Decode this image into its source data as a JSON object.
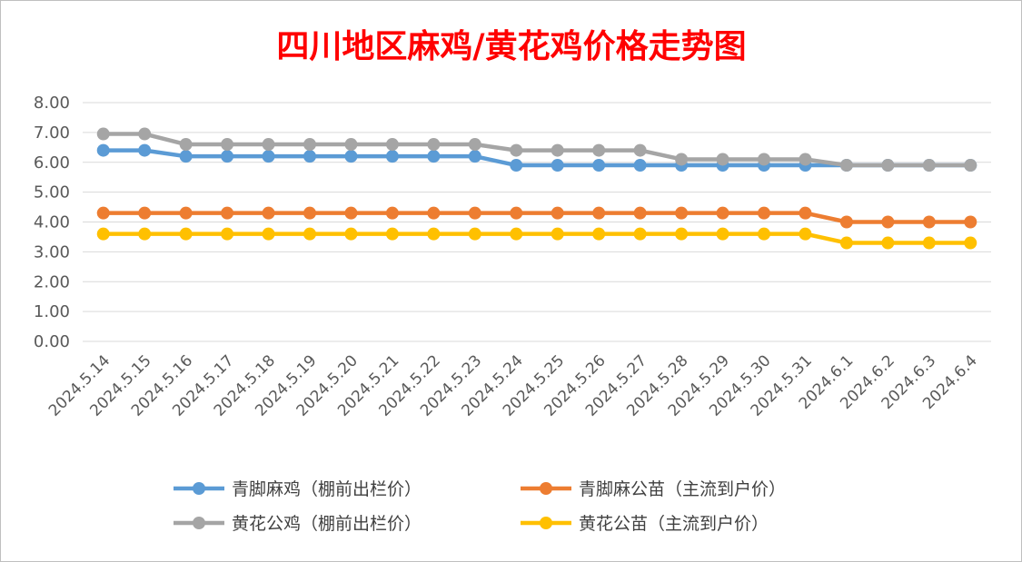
{
  "chart_data": {
    "type": "line",
    "title": "四川地区麻鸡/黄花鸡价格走势图",
    "xlabel": "",
    "ylabel": "",
    "ylim": [
      0,
      8
    ],
    "y_ticks": [
      "0.00",
      "1.00",
      "2.00",
      "3.00",
      "4.00",
      "5.00",
      "6.00",
      "7.00",
      "8.00"
    ],
    "grid": true,
    "legend_position": "bottom",
    "categories": [
      "2024.5.14",
      "2024.5.15",
      "2024.5.16",
      "2024.5.17",
      "2024.5.18",
      "2024.5.19",
      "2024.5.20",
      "2024.5.21",
      "2024.5.22",
      "2024.5.23",
      "2024.5.24",
      "2024.5.25",
      "2024.5.26",
      "2024.5.27",
      "2024.5.28",
      "2024.5.29",
      "2024.5.30",
      "2024.5.31",
      "2024.6.1",
      "2024.6.2",
      "2024.6.3",
      "2024.6.4"
    ],
    "series": [
      {
        "name": "青脚麻鸡（棚前出栏价）",
        "color": "#5b9bd5",
        "values": [
          6.4,
          6.4,
          6.2,
          6.2,
          6.2,
          6.2,
          6.2,
          6.2,
          6.2,
          6.2,
          5.9,
          5.9,
          5.9,
          5.9,
          5.9,
          5.9,
          5.9,
          5.9,
          5.9,
          5.9,
          5.9,
          5.9
        ]
      },
      {
        "name": "青脚麻公苗（主流到户价）",
        "color": "#ed7d31",
        "values": [
          4.3,
          4.3,
          4.3,
          4.3,
          4.3,
          4.3,
          4.3,
          4.3,
          4.3,
          4.3,
          4.3,
          4.3,
          4.3,
          4.3,
          4.3,
          4.3,
          4.3,
          4.3,
          4.0,
          4.0,
          4.0,
          4.0
        ]
      },
      {
        "name": "黄花公鸡（棚前出栏价）",
        "color": "#a5a5a5",
        "values": [
          6.95,
          6.95,
          6.6,
          6.6,
          6.6,
          6.6,
          6.6,
          6.6,
          6.6,
          6.6,
          6.4,
          6.4,
          6.4,
          6.4,
          6.1,
          6.1,
          6.1,
          6.1,
          5.9,
          5.9,
          5.9,
          5.9
        ]
      },
      {
        "name": "黄花公苗（主流到户价）",
        "color": "#ffc000",
        "values": [
          3.6,
          3.6,
          3.6,
          3.6,
          3.6,
          3.6,
          3.6,
          3.6,
          3.6,
          3.6,
          3.6,
          3.6,
          3.6,
          3.6,
          3.6,
          3.6,
          3.6,
          3.6,
          3.3,
          3.3,
          3.3,
          3.3
        ]
      }
    ]
  }
}
